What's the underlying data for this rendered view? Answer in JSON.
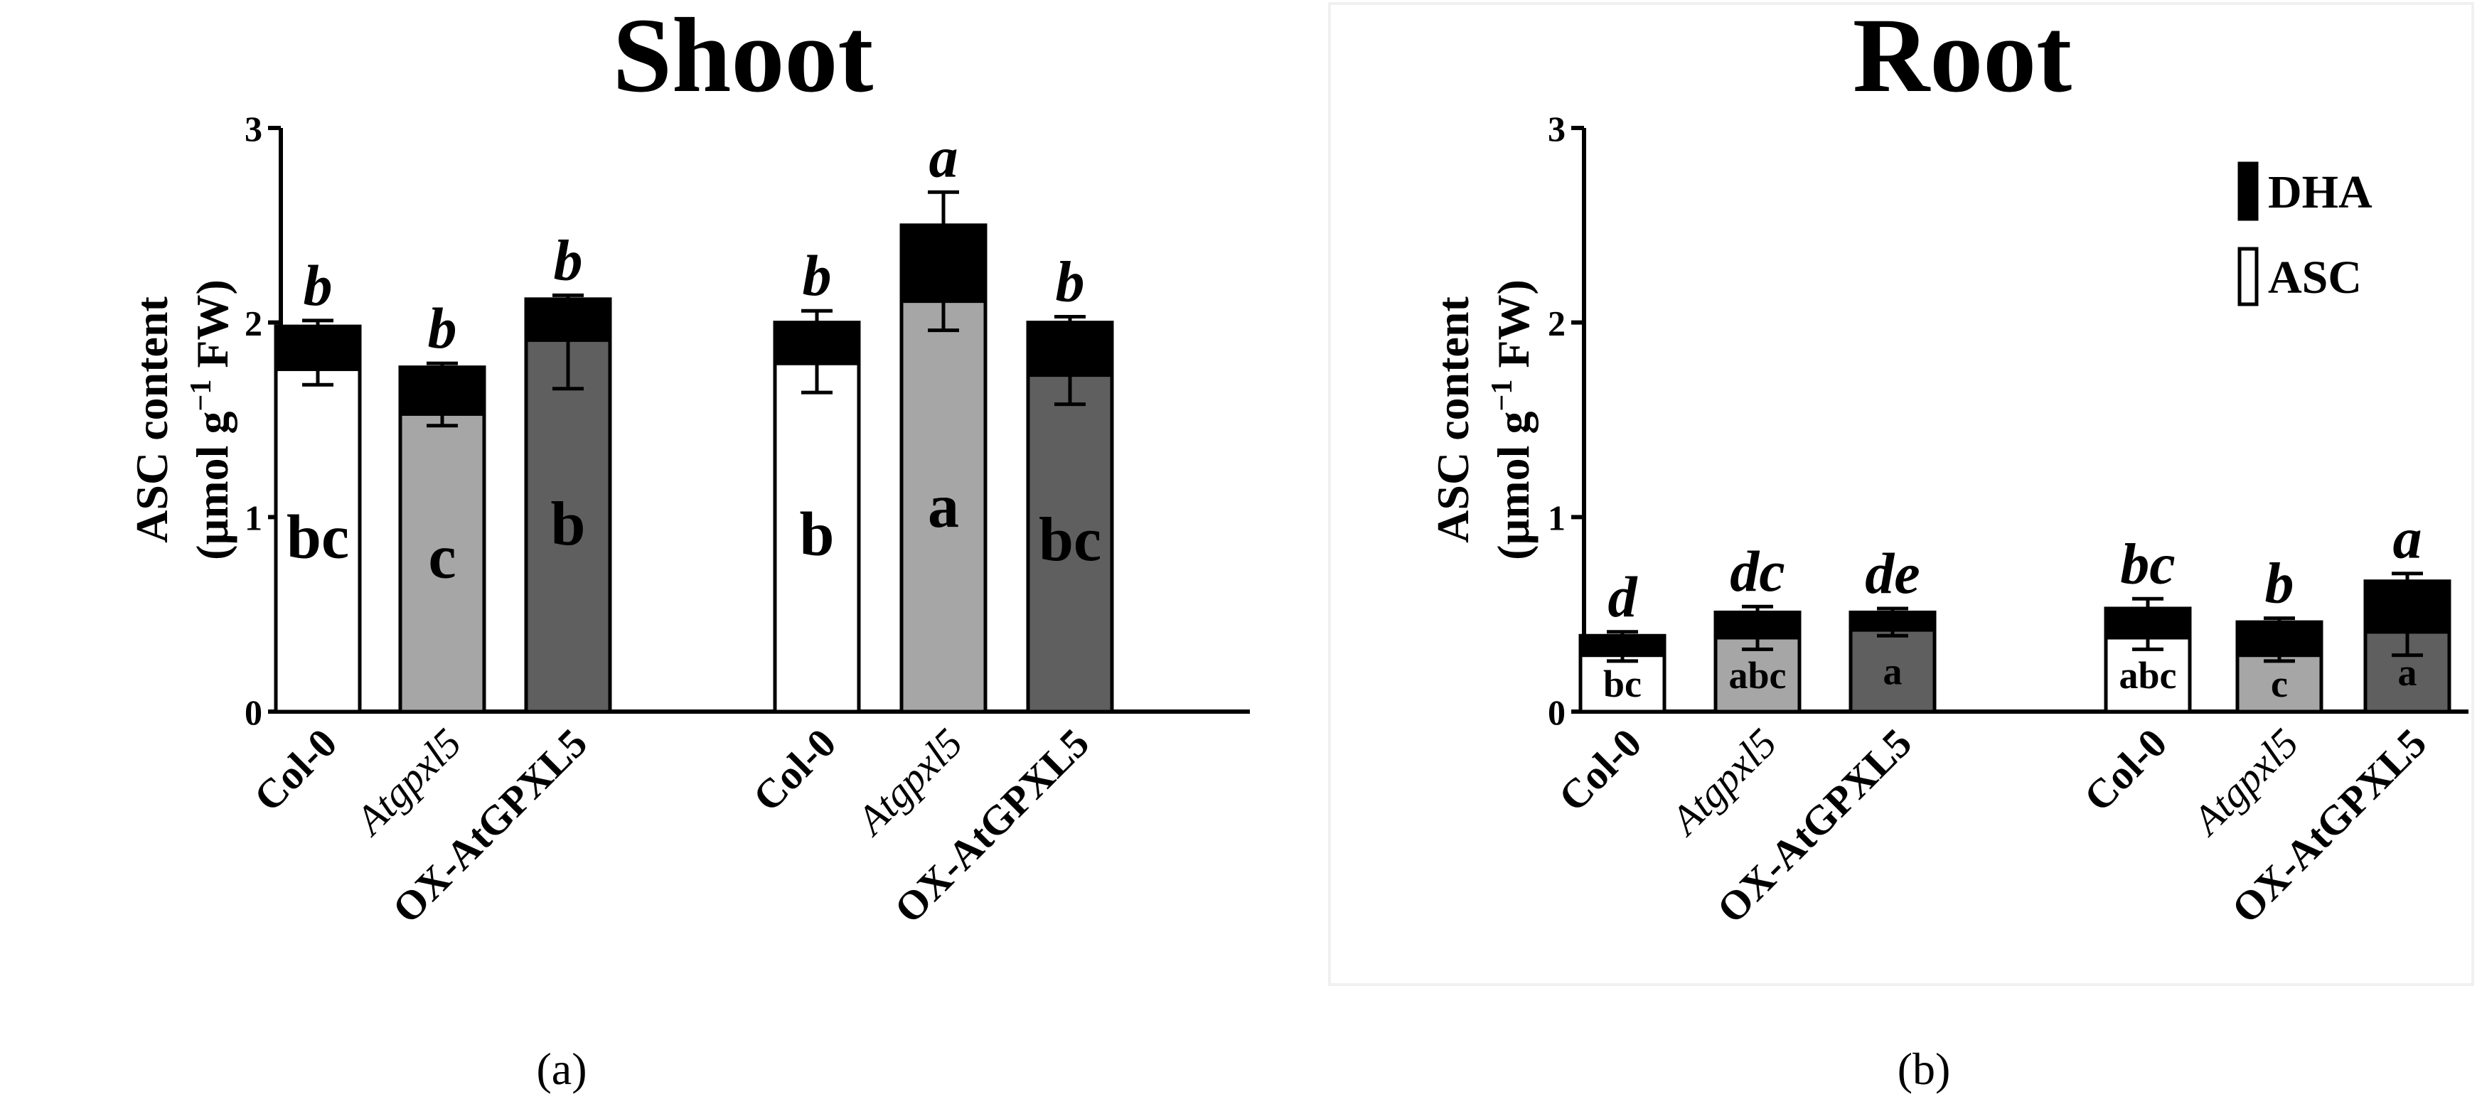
{
  "figure": {
    "panels": [
      "(a)",
      "(b)"
    ]
  },
  "chart_data": [
    {
      "type": "bar",
      "stacked": true,
      "title": "Shoot",
      "ylabel_line1": "ASC content",
      "ylabel_line2_main": "(µmol g",
      "ylabel_line2_sup": "−1",
      "ylabel_line2_end": " FW)",
      "ylim": [
        0,
        3
      ],
      "yticks": [
        "0",
        "1",
        "2",
        "3"
      ],
      "categories": [
        "Col-0",
        "Atgpxl5",
        "OX-AtGPXL5",
        "Col-0",
        "Atgpxl5",
        "OX-AtGPXL5"
      ],
      "categories_italic": [
        false,
        true,
        false,
        false,
        true,
        false
      ],
      "groups": 2,
      "series": [
        {
          "name": "ASC",
          "values": [
            1.76,
            1.53,
            1.91,
            1.79,
            2.11,
            1.73
          ],
          "err_low": [
            0.08,
            0.06,
            0.25,
            0.15,
            0.15,
            0.15
          ]
        },
        {
          "name": "DHA",
          "values": [
            0.22,
            0.24,
            0.21,
            0.21,
            0.39,
            0.27
          ],
          "err_high": [
            0.03,
            0.02,
            0.02,
            0.06,
            0.17,
            0.03
          ]
        }
      ],
      "bar_fill": [
        "#ffffff",
        "#a6a6a6",
        "#5f5f5f",
        "#ffffff",
        "#a6a6a6",
        "#5f5f5f"
      ],
      "total_labels": [
        "b",
        "b",
        "b",
        "b",
        "a",
        "b"
      ],
      "asc_labels": [
        "bc",
        "c",
        "b",
        "b",
        "a",
        "bc"
      ],
      "legend": null
    },
    {
      "type": "bar",
      "stacked": true,
      "title": "Root",
      "ylabel_line1": "ASC content",
      "ylabel_line2_main": "(µmol g",
      "ylabel_line2_sup": "−1",
      "ylabel_line2_end": " FW)",
      "ylim": [
        0,
        3
      ],
      "yticks": [
        "0",
        "1",
        "2",
        "3"
      ],
      "categories": [
        "Col-0",
        "Atgpxl5",
        "OX-AtGPXL5",
        "Col-0",
        "Atgpxl5",
        "OX-AtGPXL5"
      ],
      "categories_italic": [
        false,
        true,
        false,
        false,
        true,
        false
      ],
      "groups": 2,
      "series": [
        {
          "name": "ASC",
          "values": [
            0.29,
            0.38,
            0.42,
            0.38,
            0.29,
            0.41
          ],
          "err_low": [
            0.03,
            0.06,
            0.03,
            0.06,
            0.03,
            0.12
          ]
        },
        {
          "name": "DHA",
          "values": [
            0.1,
            0.13,
            0.09,
            0.15,
            0.17,
            0.26
          ],
          "err_high": [
            0.02,
            0.03,
            0.02,
            0.05,
            0.02,
            0.04
          ]
        }
      ],
      "bar_fill": [
        "#ffffff",
        "#a6a6a6",
        "#5f5f5f",
        "#ffffff",
        "#a6a6a6",
        "#5f5f5f"
      ],
      "total_labels": [
        "d",
        "dc",
        "de",
        "bc",
        "b",
        "a"
      ],
      "asc_labels": [
        "bc",
        "abc",
        "a",
        "abc",
        "c",
        "a"
      ],
      "legend": {
        "placement": "top-right",
        "entries": [
          {
            "label": "DHA",
            "fill": "#000000"
          },
          {
            "label": "ASC",
            "fill": "#ffffff"
          }
        ]
      }
    }
  ]
}
